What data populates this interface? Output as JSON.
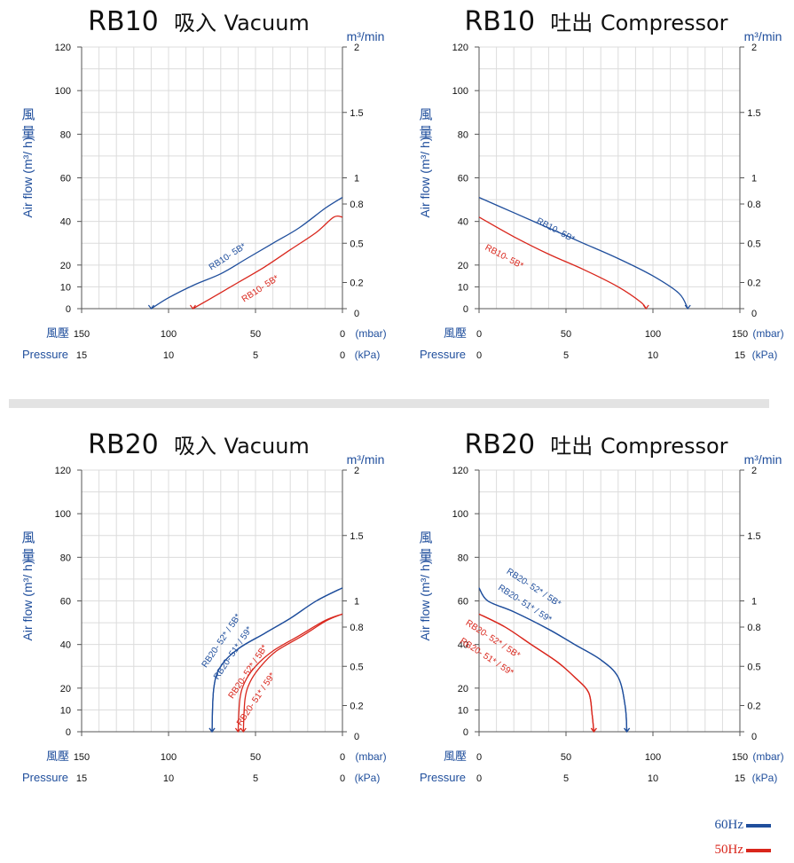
{
  "panels": [
    {
      "title_model": "RB10",
      "title_cn": "吸入",
      "title_en": "Vacuum"
    },
    {
      "title_model": "RB10",
      "title_cn": "吐出",
      "title_en": "Compressor"
    },
    {
      "title_model": "RB20",
      "title_cn": "吸入",
      "title_en": "Vacuum"
    },
    {
      "title_model": "RB20",
      "title_cn": "吐出",
      "title_en": "Compressor"
    }
  ],
  "axis_text": {
    "y_cn_1": "風",
    "y_cn_2": "量",
    "y_en": "Air flow (m³/ h)",
    "right_unit": "m³/min",
    "x_cn": "風壓",
    "x_en": "Pressure",
    "unit_mbar": "(mbar)",
    "unit_kpa": "(kPa)"
  },
  "legend": {
    "hz60": "60Hz",
    "hz50": "50Hz",
    "color60": "#1f4e9c",
    "color50": "#d9261c"
  },
  "chart_data": [
    {
      "type": "line",
      "title": "RB10 吸入 Vacuum",
      "xlabel": "風壓 Pressure",
      "ylabel": "風量 Air flow (m³/ h)",
      "x_axis_reversed": true,
      "xlim": [
        150,
        0
      ],
      "ylim": [
        0,
        120
      ],
      "x_ticks_mbar": [
        "150",
        "100",
        "50",
        "0"
      ],
      "x_ticks_kpa": [
        "15",
        "10",
        "5",
        "0"
      ],
      "y_ticks": [
        "0",
        "10",
        "20",
        "40",
        "60",
        "80",
        "100",
        "120"
      ],
      "y2_ticks": [
        "0",
        "0.2",
        "0.5",
        "0.8",
        "1",
        "1.5",
        "2"
      ],
      "grid": true,
      "series": [
        {
          "name": "RB10- 5B*",
          "freq": "60Hz",
          "x": [
            110,
            100,
            85,
            70,
            55,
            40,
            25,
            10,
            0
          ],
          "y": [
            0,
            5,
            11,
            16,
            23,
            30,
            37,
            46,
            51
          ]
        },
        {
          "name": "RB10- 5B*",
          "freq": "50Hz",
          "x": [
            86,
            75,
            60,
            45,
            30,
            15,
            5,
            0
          ],
          "y": [
            0,
            5,
            12,
            19,
            27,
            35,
            42,
            42
          ]
        }
      ],
      "labels": [
        {
          "text": "RB10- 5B*",
          "freq": "60Hz"
        },
        {
          "text": "RB10- 5B*",
          "freq": "50Hz"
        }
      ]
    },
    {
      "type": "line",
      "title": "RB10 吐出 Compressor",
      "xlabel": "風壓 Pressure",
      "ylabel": "風量 Air flow (m³/ h)",
      "xlim": [
        0,
        150
      ],
      "ylim": [
        0,
        120
      ],
      "x_ticks_mbar": [
        "0",
        "50",
        "100",
        "150"
      ],
      "x_ticks_kpa": [
        "0",
        "5",
        "10",
        "15"
      ],
      "y_ticks": [
        "0",
        "10",
        "20",
        "40",
        "60",
        "80",
        "100",
        "120"
      ],
      "y2_ticks": [
        "0",
        "0.2",
        "0.5",
        "0.8",
        "1",
        "1.5",
        "2"
      ],
      "grid": true,
      "series": [
        {
          "name": "RB10- 5B*",
          "freq": "60Hz",
          "x": [
            0,
            20,
            40,
            60,
            80,
            100,
            115,
            120
          ],
          "y": [
            51,
            44,
            37,
            30,
            23,
            15,
            7,
            0
          ]
        },
        {
          "name": "RB10- 5B*",
          "freq": "50Hz",
          "x": [
            0,
            20,
            40,
            60,
            80,
            93,
            96
          ],
          "y": [
            42,
            33,
            25,
            18,
            10,
            3,
            0
          ]
        }
      ],
      "labels": [
        {
          "text": "RB10- 5B*",
          "freq": "60Hz"
        },
        {
          "text": "RB10- 5B*",
          "freq": "50Hz"
        }
      ]
    },
    {
      "type": "line",
      "title": "RB20 吸入 Vacuum",
      "xlabel": "風壓 Pressure",
      "ylabel": "風量 Air flow (m³/ h)",
      "x_axis_reversed": true,
      "xlim": [
        150,
        0
      ],
      "ylim": [
        0,
        120
      ],
      "x_ticks_mbar": [
        "150",
        "100",
        "50",
        "0"
      ],
      "x_ticks_kpa": [
        "15",
        "10",
        "5",
        "0"
      ],
      "y_ticks": [
        "0",
        "10",
        "20",
        "40",
        "60",
        "80",
        "100",
        "120"
      ],
      "y2_ticks": [
        "0",
        "0.2",
        "0.5",
        "0.8",
        "1",
        "1.5",
        "2"
      ],
      "grid": true,
      "series": [
        {
          "name": "RB20- 52* / 5B*",
          "freq": "60Hz",
          "x": [
            75,
            74,
            70,
            60,
            45,
            30,
            15,
            0
          ],
          "y": [
            0,
            20,
            30,
            38,
            45,
            52,
            60,
            66
          ]
        },
        {
          "name": "RB20- 51* / 59*",
          "freq": "60Hz",
          "x": [
            75,
            74,
            70,
            60,
            45,
            30,
            15,
            0
          ],
          "y": [
            0,
            20,
            30,
            38,
            45,
            52,
            60,
            66
          ]
        },
        {
          "name": "RB20- 52* / 5B*",
          "freq": "50Hz",
          "x": [
            60,
            59,
            56,
            50,
            40,
            25,
            10,
            0
          ],
          "y": [
            0,
            15,
            23,
            30,
            37,
            44,
            51,
            54
          ]
        },
        {
          "name": "RB20- 51* / 59*",
          "freq": "50Hz",
          "x": [
            57,
            56,
            53,
            47,
            38,
            23,
            9,
            0
          ],
          "y": [
            0,
            15,
            23,
            30,
            37,
            44,
            51,
            54
          ]
        }
      ],
      "labels": [
        {
          "text": "RB20- 52* / 5B*",
          "freq": "60Hz"
        },
        {
          "text": "RB20- 51* / 59*",
          "freq": "60Hz"
        },
        {
          "text": "RB20- 52* / 5B*",
          "freq": "50Hz"
        },
        {
          "text": "RB20- 51* / 59*",
          "freq": "50Hz"
        }
      ]
    },
    {
      "type": "line",
      "title": "RB20 吐出 Compressor",
      "xlabel": "風壓 Pressure",
      "ylabel": "風量 Air flow (m³/ h)",
      "xlim": [
        0,
        150
      ],
      "ylim": [
        0,
        120
      ],
      "x_ticks_mbar": [
        "0",
        "50",
        "100",
        "150"
      ],
      "x_ticks_kpa": [
        "0",
        "5",
        "10",
        "15"
      ],
      "y_ticks": [
        "0",
        "10",
        "20",
        "40",
        "60",
        "80",
        "100",
        "120"
      ],
      "y2_ticks": [
        "0",
        "0.2",
        "0.5",
        "0.8",
        "1",
        "1.5",
        "2"
      ],
      "grid": true,
      "series": [
        {
          "name": "RB20- 52* / 5B*",
          "freq": "60Hz",
          "x": [
            0,
            5,
            20,
            40,
            55,
            70,
            80,
            84,
            85
          ],
          "y": [
            66,
            60,
            55,
            47,
            40,
            33,
            25,
            12,
            0
          ]
        },
        {
          "name": "RB20- 51* / 59*",
          "freq": "60Hz",
          "x": [
            0,
            5,
            20,
            40,
            55,
            70,
            80,
            84,
            85
          ],
          "y": [
            66,
            60,
            55,
            47,
            40,
            33,
            25,
            12,
            0
          ]
        },
        {
          "name": "RB20- 52* / 5B*",
          "freq": "50Hz",
          "x": [
            0,
            15,
            30,
            45,
            55,
            63,
            65,
            66
          ],
          "y": [
            54,
            48,
            40,
            32,
            25,
            18,
            8,
            0
          ]
        },
        {
          "name": "RB20- 51* / 59*",
          "freq": "50Hz",
          "x": [
            0,
            15,
            30,
            45,
            55,
            63,
            65,
            66
          ],
          "y": [
            54,
            48,
            40,
            32,
            25,
            18,
            8,
            0
          ]
        }
      ],
      "labels": [
        {
          "text": "RB20- 52* / 5B*",
          "freq": "60Hz"
        },
        {
          "text": "RB20- 51* / 59*",
          "freq": "60Hz"
        },
        {
          "text": "RB20- 52* / 5B*",
          "freq": "50Hz"
        },
        {
          "text": "RB20- 51* / 59*",
          "freq": "50Hz"
        }
      ]
    }
  ]
}
